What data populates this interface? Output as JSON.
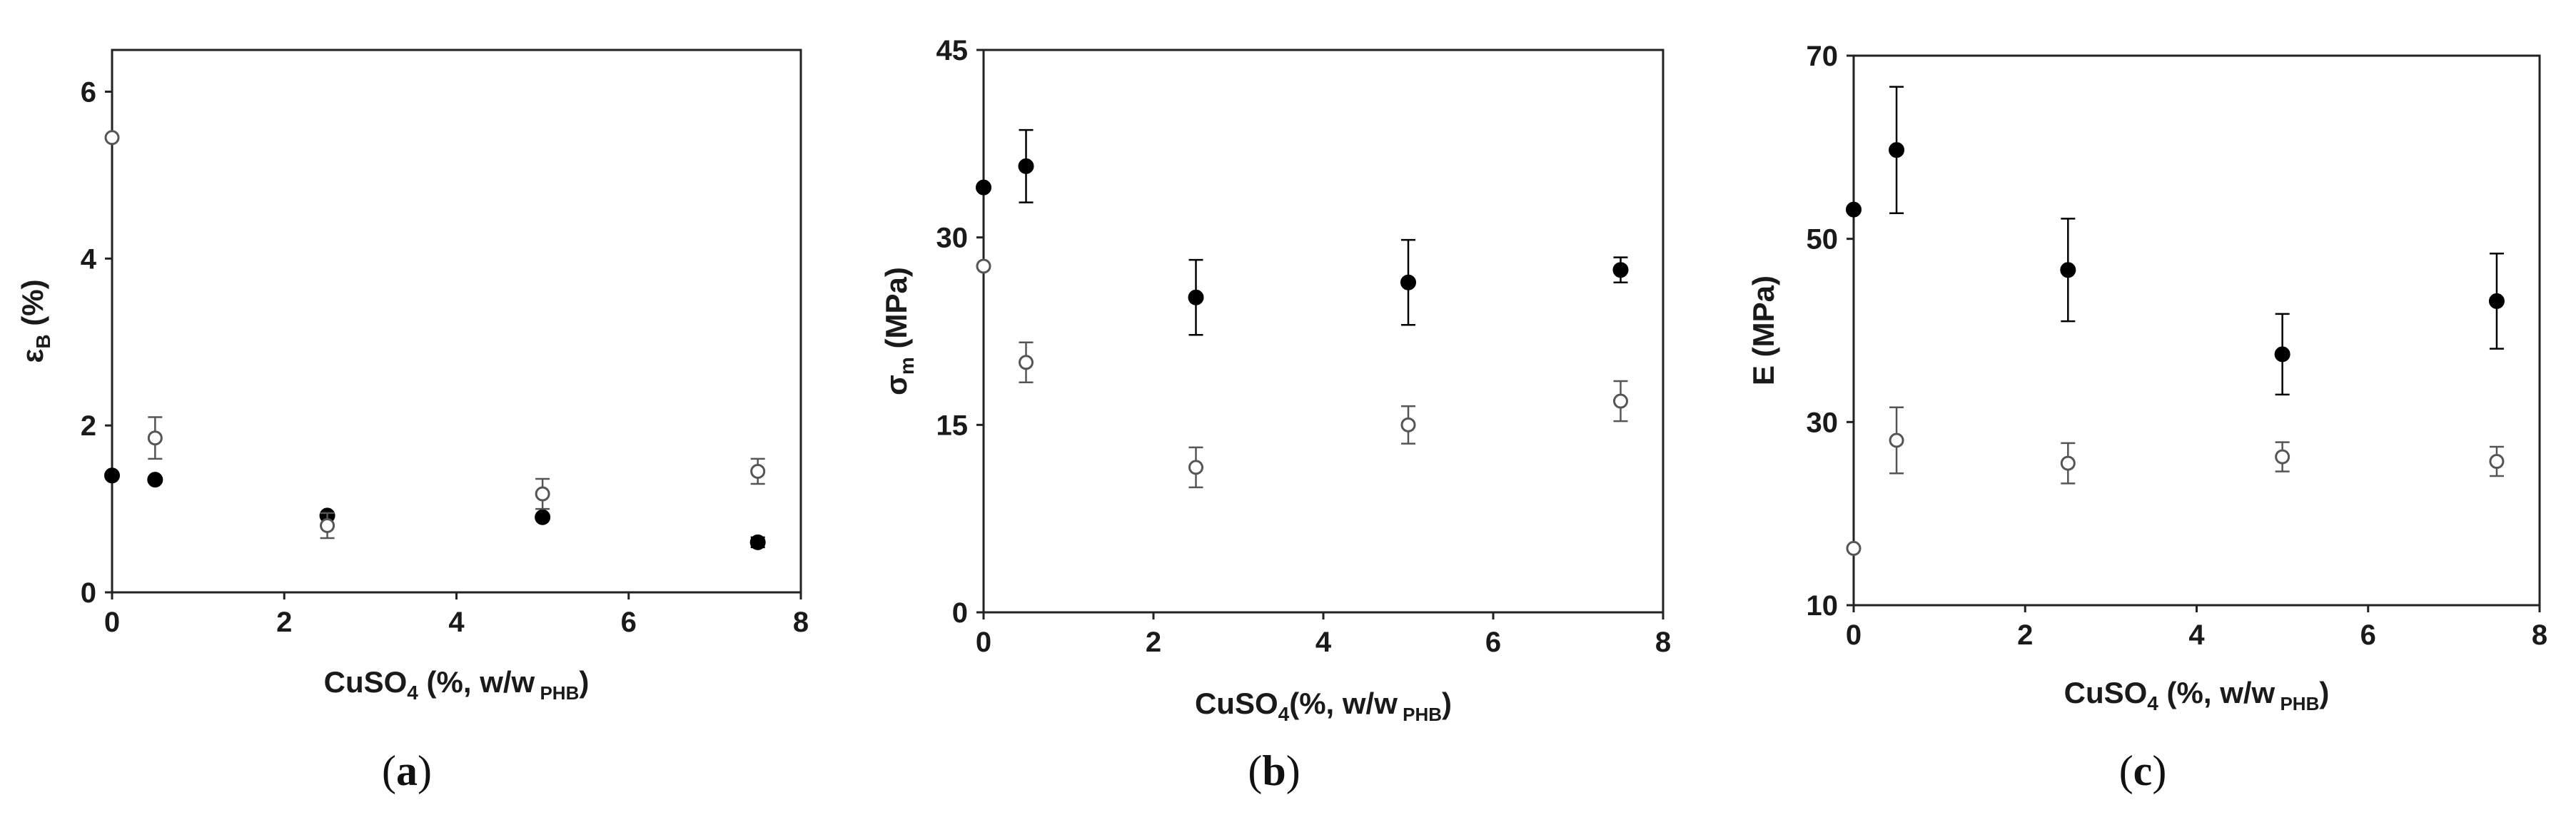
{
  "chart_data": [
    {
      "type": "scatter",
      "panel_label": "a",
      "caption": "(a)",
      "ylabel": "ε",
      "ylabel_sub": "B",
      "ylabel_rest": " (%)",
      "xlabel_pre": "CuSO",
      "xlabel_sub4": "4",
      "xlabel_mid": " (%, w/w",
      "xlabel_sub": " PHB",
      "xlabel_end": ")",
      "xlim": [
        0,
        8
      ],
      "ylim": [
        0,
        6.5
      ],
      "xticks": [
        0,
        2,
        4,
        6,
        8
      ],
      "yticks": [
        0,
        2,
        4,
        6
      ],
      "series": [
        {
          "marker": "filled",
          "color": "#000000",
          "points": [
            {
              "x": 0,
              "y": 1.4,
              "err": 0.0
            },
            {
              "x": 0.5,
              "y": 1.35,
              "err": 0.0
            },
            {
              "x": 2.5,
              "y": 0.92,
              "err": 0.0
            },
            {
              "x": 5,
              "y": 0.9,
              "err": 0.0
            },
            {
              "x": 7.5,
              "y": 0.6,
              "err": 0.06
            }
          ]
        },
        {
          "marker": "open",
          "color": "#555555",
          "points": [
            {
              "x": 0,
              "y": 5.45,
              "err": 0.0
            },
            {
              "x": 0.5,
              "y": 1.85,
              "err": 0.25
            },
            {
              "x": 2.5,
              "y": 0.8,
              "err": 0.15
            },
            {
              "x": 5,
              "y": 1.18,
              "err": 0.18
            },
            {
              "x": 7.5,
              "y": 1.45,
              "err": 0.15
            }
          ]
        }
      ]
    },
    {
      "type": "scatter",
      "panel_label": "b",
      "caption": "(b)",
      "ylabel": "σ",
      "ylabel_sub": "m",
      "ylabel_rest": " (MPa)",
      "xlabel_pre": "CuSO",
      "xlabel_sub4": "4",
      "xlabel_mid": "(%, w/w",
      "xlabel_sub": " PHB",
      "xlabel_end": ")",
      "xlim": [
        0,
        8
      ],
      "ylim": [
        0,
        45
      ],
      "xticks": [
        0,
        2,
        4,
        6,
        8
      ],
      "yticks": [
        0,
        15,
        30,
        45
      ],
      "series": [
        {
          "marker": "filled",
          "color": "#000000",
          "points": [
            {
              "x": 0,
              "y": 34.0,
              "err": 0.0
            },
            {
              "x": 0.5,
              "y": 35.7,
              "err": 2.9
            },
            {
              "x": 2.5,
              "y": 25.2,
              "err": 3.0
            },
            {
              "x": 5,
              "y": 26.4,
              "err": 3.4
            },
            {
              "x": 7.5,
              "y": 27.4,
              "err": 1.0
            }
          ]
        },
        {
          "marker": "open",
          "color": "#555555",
          "points": [
            {
              "x": 0,
              "y": 27.7,
              "err": 0.0
            },
            {
              "x": 0.5,
              "y": 20.0,
              "err": 1.6
            },
            {
              "x": 2.5,
              "y": 11.6,
              "err": 1.6
            },
            {
              "x": 5,
              "y": 15.0,
              "err": 1.5
            },
            {
              "x": 7.5,
              "y": 16.9,
              "err": 1.6
            }
          ]
        }
      ]
    },
    {
      "type": "scatter",
      "panel_label": "c",
      "caption": "(c)",
      "ylabel": "E",
      "ylabel_sub": "",
      "ylabel_rest": " (MPa)",
      "xlabel_pre": "CuSO",
      "xlabel_sub4": "4",
      "xlabel_mid": " (%, w/w",
      "xlabel_sub": " PHB",
      "xlabel_end": ")",
      "xlim": [
        0,
        8
      ],
      "ylim": [
        10,
        70
      ],
      "xticks": [
        0,
        2,
        4,
        6,
        8
      ],
      "yticks": [
        10,
        30,
        50,
        70
      ],
      "series": [
        {
          "marker": "filled",
          "color": "#000000",
          "points": [
            {
              "x": 0,
              "y": 53.2,
              "err": 0.0
            },
            {
              "x": 0.5,
              "y": 59.7,
              "err": 6.9
            },
            {
              "x": 2.5,
              "y": 46.6,
              "err": 5.6
            },
            {
              "x": 5,
              "y": 37.4,
              "err": 4.4
            },
            {
              "x": 7.5,
              "y": 43.2,
              "err": 5.2
            }
          ]
        },
        {
          "marker": "open",
          "color": "#555555",
          "points": [
            {
              "x": 0,
              "y": 16.2,
              "err": 0.0
            },
            {
              "x": 0.5,
              "y": 28.0,
              "err": 3.6
            },
            {
              "x": 2.5,
              "y": 25.5,
              "err": 2.2
            },
            {
              "x": 5,
              "y": 26.2,
              "err": 1.6
            },
            {
              "x": 7.5,
              "y": 25.7,
              "err": 1.6
            }
          ]
        }
      ]
    }
  ]
}
